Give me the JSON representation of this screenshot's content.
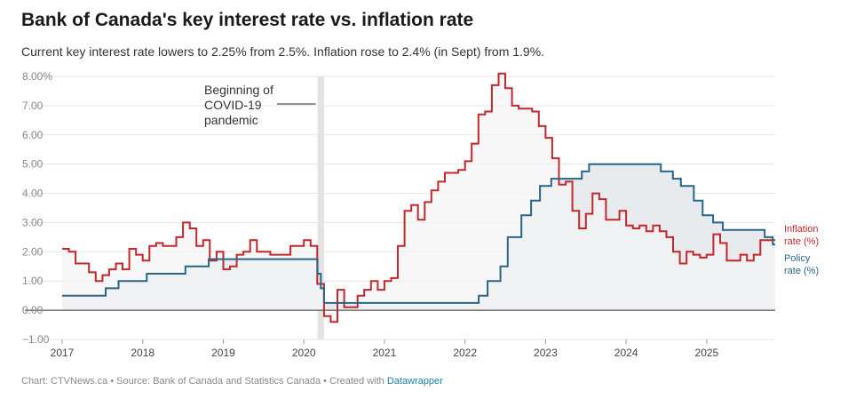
{
  "title": "Bank of Canada's key interest rate vs. inflation rate",
  "subtitle": "Current key interest rate lowers to 2.25% from 2.5%. Inflation rose to 2.4% (in Sept) from 1.9%.",
  "footer": {
    "prefix": "Chart: CTVNews.ca • Source: Bank of Canada and Statistics Canada • Created with ",
    "link": "Datawrapper"
  },
  "chart_data": {
    "type": "line",
    "title": "Bank of Canada's key interest rate vs. inflation rate",
    "xlabel": "",
    "ylabel": "",
    "xlim": [
      2017.0,
      2025.85
    ],
    "ylim": [
      -1.0,
      8.0
    ],
    "grid": true,
    "yticks": [
      {
        "value": 8,
        "label": "8.00%"
      },
      {
        "value": 7,
        "label": "7.00"
      },
      {
        "value": 6,
        "label": "6.00"
      },
      {
        "value": 5,
        "label": "5.00"
      },
      {
        "value": 4,
        "label": "4.00"
      },
      {
        "value": 3,
        "label": "3.00"
      },
      {
        "value": 2,
        "label": "2.00"
      },
      {
        "value": 1,
        "label": "1.00"
      },
      {
        "value": 0,
        "label": "0.00"
      },
      {
        "value": -1,
        "label": "−1.00"
      }
    ],
    "xticks": [
      {
        "value": 2017,
        "label": "2017"
      },
      {
        "value": 2018,
        "label": "2018"
      },
      {
        "value": 2019,
        "label": "2019"
      },
      {
        "value": 2020,
        "label": "2020"
      },
      {
        "value": 2021,
        "label": "2021"
      },
      {
        "value": 2022,
        "label": "2022"
      },
      {
        "value": 2023,
        "label": "2023"
      },
      {
        "value": 2024,
        "label": "2024"
      },
      {
        "value": 2025,
        "label": "2025"
      }
    ],
    "annotation": {
      "lines": [
        "Beginning of",
        "COVID-19",
        "pandemic"
      ],
      "x_start": 2020.17,
      "x_end": 2020.25
    },
    "series": [
      {
        "name": "Inflation rate (%)",
        "label_lines": [
          "Inflation",
          "rate (%)"
        ],
        "color": "#c0282d",
        "step": true,
        "x0": 2017.0,
        "dx": 0.08333,
        "values": [
          2.1,
          2.0,
          1.6,
          1.6,
          1.3,
          1.0,
          1.2,
          1.4,
          1.6,
          1.4,
          2.1,
          1.9,
          1.7,
          2.2,
          2.3,
          2.2,
          2.2,
          2.5,
          3.0,
          2.8,
          2.2,
          2.4,
          1.7,
          2.0,
          1.4,
          1.5,
          1.9,
          2.0,
          2.4,
          2.0,
          2.0,
          1.9,
          1.9,
          1.9,
          2.2,
          2.2,
          2.4,
          2.2,
          0.9,
          -0.2,
          -0.4,
          0.7,
          0.1,
          0.1,
          0.5,
          0.7,
          1.0,
          0.7,
          1.0,
          1.1,
          2.2,
          3.4,
          3.6,
          3.1,
          3.7,
          4.1,
          4.4,
          4.7,
          4.7,
          4.8,
          5.1,
          5.7,
          6.7,
          6.8,
          7.7,
          8.1,
          7.6,
          7.0,
          6.9,
          6.9,
          6.8,
          6.3,
          5.9,
          5.2,
          4.3,
          4.4,
          3.4,
          2.8,
          3.3,
          4.0,
          3.8,
          3.1,
          3.1,
          3.4,
          2.9,
          2.8,
          2.9,
          2.7,
          2.9,
          2.7,
          2.5,
          2.0,
          1.6,
          2.0,
          1.9,
          1.8,
          1.9,
          2.6,
          2.3,
          1.7,
          1.7,
          1.9,
          1.7,
          1.9,
          2.4,
          2.4
        ],
        "last_label_value": 2.4
      },
      {
        "name": "Policy rate (%)",
        "label_lines": [
          "Policy",
          "rate (%)"
        ],
        "color": "#2a6588",
        "step": true,
        "points": [
          [
            2017.0,
            0.5
          ],
          [
            2017.54,
            0.75
          ],
          [
            2017.7,
            1.0
          ],
          [
            2018.05,
            1.25
          ],
          [
            2018.53,
            1.5
          ],
          [
            2018.82,
            1.75
          ],
          [
            2020.17,
            1.25
          ],
          [
            2020.21,
            0.75
          ],
          [
            2020.25,
            0.25
          ],
          [
            2022.17,
            0.5
          ],
          [
            2022.28,
            1.0
          ],
          [
            2022.44,
            1.5
          ],
          [
            2022.53,
            2.5
          ],
          [
            2022.7,
            3.25
          ],
          [
            2022.82,
            3.75
          ],
          [
            2022.93,
            4.25
          ],
          [
            2023.07,
            4.5
          ],
          [
            2023.45,
            4.75
          ],
          [
            2023.54,
            5.0
          ],
          [
            2024.43,
            4.75
          ],
          [
            2024.58,
            4.5
          ],
          [
            2024.68,
            4.25
          ],
          [
            2024.84,
            3.75
          ],
          [
            2024.95,
            3.25
          ],
          [
            2025.08,
            3.0
          ],
          [
            2025.2,
            2.75
          ],
          [
            2025.72,
            2.5
          ],
          [
            2025.82,
            2.25
          ],
          [
            2025.85,
            2.25
          ]
        ],
        "last_label_value": 2.25
      }
    ]
  }
}
